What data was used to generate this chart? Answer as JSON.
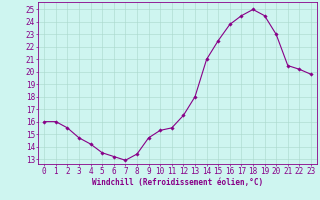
{
  "x": [
    0,
    1,
    2,
    3,
    4,
    5,
    6,
    7,
    8,
    9,
    10,
    11,
    12,
    13,
    14,
    15,
    16,
    17,
    18,
    19,
    20,
    21,
    22,
    23
  ],
  "y": [
    16.0,
    16.0,
    15.5,
    14.7,
    14.2,
    13.5,
    13.2,
    12.9,
    13.4,
    14.7,
    15.3,
    15.5,
    16.5,
    18.0,
    21.0,
    22.5,
    23.8,
    24.5,
    25.0,
    24.5,
    23.0,
    20.5,
    20.2,
    19.8
  ],
  "line_color": "#880088",
  "marker": "D",
  "marker_size": 1.8,
  "bg_color": "#cef5f0",
  "grid_color": "#aad8cc",
  "xlabel": "Windchill (Refroidissement éolien,°C)",
  "yticks": [
    13,
    14,
    15,
    16,
    17,
    18,
    19,
    20,
    21,
    22,
    23,
    24,
    25
  ],
  "xticks": [
    0,
    1,
    2,
    3,
    4,
    5,
    6,
    7,
    8,
    9,
    10,
    11,
    12,
    13,
    14,
    15,
    16,
    17,
    18,
    19,
    20,
    21,
    22,
    23
  ],
  "xlim": [
    -0.5,
    23.5
  ],
  "ylim": [
    12.6,
    25.6
  ],
  "xlabel_fontsize": 5.5,
  "tick_fontsize": 5.5,
  "label_color": "#880088",
  "axis_color": "#880088",
  "spine_color": "#880088"
}
